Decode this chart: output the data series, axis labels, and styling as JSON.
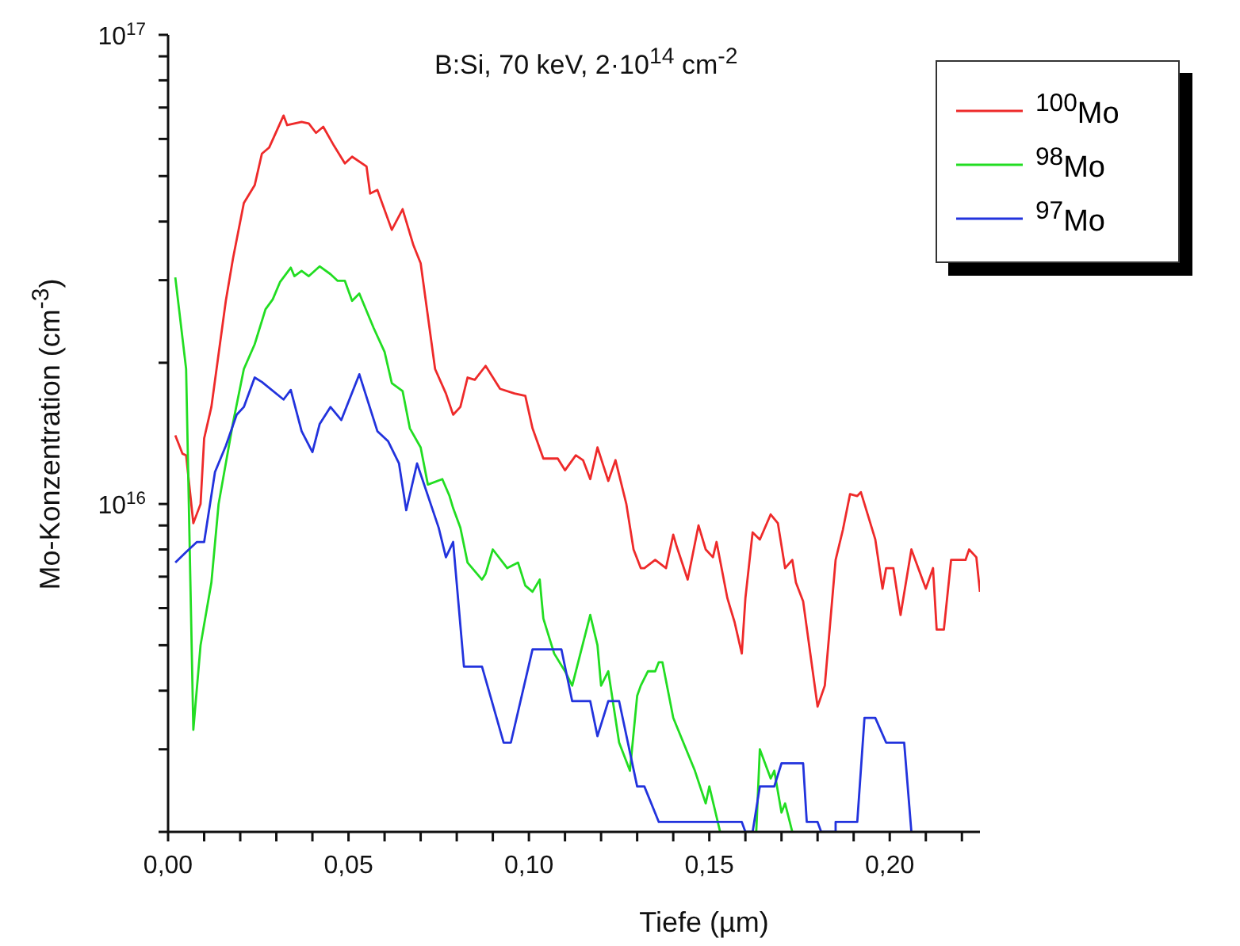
{
  "chart_data": {
    "type": "line",
    "xlabel": "Tiefe (µm)",
    "ylabel": "Mo-Konzentration  (cm$^{-3}$)",
    "annotations": [
      "B:Si, 70 keV, 2·10$^{14}$ cm$^{-2}$"
    ],
    "log": "y",
    "legend": "top right",
    "xlim": [
      0,
      0.225
    ],
    "xticks": [
      {
        "value": 0,
        "label": "0,00"
      },
      {
        "value": 0.01,
        "label": null
      },
      {
        "value": 0.02,
        "label": null
      },
      {
        "value": 0.03,
        "label": null
      },
      {
        "value": 0.04,
        "label": null
      },
      {
        "value": 0.05,
        "label": "0,05"
      },
      {
        "value": 0.06,
        "label": null
      },
      {
        "value": 0.07,
        "label": null
      },
      {
        "value": 0.08,
        "label": null
      },
      {
        "value": 0.09,
        "label": null
      },
      {
        "value": 0.1,
        "label": "0,10"
      },
      {
        "value": 0.11,
        "label": null
      },
      {
        "value": 0.12,
        "label": null
      },
      {
        "value": 0.13,
        "label": null
      },
      {
        "value": 0.14,
        "label": null
      },
      {
        "value": 0.15,
        "label": "0,15"
      },
      {
        "value": 0.16,
        "label": null
      },
      {
        "value": 0.17,
        "label": null
      },
      {
        "value": 0.18,
        "label": null
      },
      {
        "value": 0.19,
        "label": null
      },
      {
        "value": 0.2,
        "label": "0,20"
      },
      {
        "value": 0.21,
        "label": null
      },
      {
        "value": 0.22,
        "label": null
      }
    ],
    "ylim": [
      2000000000000000.0,
      1e+17
    ],
    "yticks": [
      {
        "value": 2000000000000000.0,
        "label": null
      },
      {
        "value": 3000000000000000.0,
        "label": null
      },
      {
        "value": 4000000000000000.0,
        "label": null
      },
      {
        "value": 5000000000000000.0,
        "label": null
      },
      {
        "value": 6000000000000000.0,
        "label": null
      },
      {
        "value": 7000000000000000.0,
        "label": null
      },
      {
        "value": 8000000000000000.0,
        "label": null
      },
      {
        "value": 9000000000000000.0,
        "label": null
      },
      {
        "value": 1e+16,
        "label": "10$^{16}$"
      },
      {
        "value": 2e+16,
        "label": null
      },
      {
        "value": 3e+16,
        "label": null
      },
      {
        "value": 4e+16,
        "label": null
      },
      {
        "value": 5e+16,
        "label": null
      },
      {
        "value": 6e+16,
        "label": null
      },
      {
        "value": 7e+16,
        "label": null
      },
      {
        "value": 8e+16,
        "label": null
      },
      {
        "value": 9e+16,
        "label": null
      },
      {
        "value": 1e+17,
        "label": "10$^{17}$"
      }
    ],
    "series": [
      {
        "name": "$^{100}$Mo",
        "color": "#ee2a2a",
        "x": [
          0.002,
          0.004,
          0.005,
          0.007,
          0.009,
          0.01,
          0.012,
          0.016,
          0.018,
          0.021,
          0.024,
          0.026,
          0.028,
          0.032,
          0.033,
          0.037,
          0.039,
          0.041,
          0.043,
          0.046,
          0.049,
          0.051,
          0.055,
          0.056,
          0.058,
          0.062,
          0.065,
          0.068,
          0.07,
          0.074,
          0.077,
          0.079,
          0.081,
          0.083,
          0.085,
          0.088,
          0.092,
          0.096,
          0.099,
          0.101,
          0.104,
          0.108,
          0.11,
          0.113,
          0.115,
          0.117,
          0.119,
          0.122,
          0.124,
          0.127,
          0.129,
          0.131,
          0.132,
          0.135,
          0.138,
          0.14,
          0.141,
          0.144,
          0.147,
          0.149,
          0.151,
          0.152,
          0.155,
          0.157,
          0.159,
          0.16,
          0.162,
          0.164,
          0.167,
          0.169,
          0.171,
          0.173,
          0.174,
          0.176,
          0.18,
          0.182,
          0.185,
          0.187,
          0.189,
          0.191,
          0.192,
          0.196,
          0.198,
          0.199,
          0.201,
          0.203,
          0.206,
          0.21,
          0.212,
          0.213,
          0.215,
          0.217,
          0.221,
          0.222,
          0.224,
          0.225
        ],
        "values": [
          1.4e+16,
          1.28e+16,
          1.27e+16,
          9100000000000000.0,
          1e+16,
          1.38e+16,
          1.61e+16,
          2.71e+16,
          3.34e+16,
          4.38e+16,
          4.78e+16,
          5.58e+16,
          5.75e+16,
          6.73e+16,
          6.42e+16,
          6.52e+16,
          6.47e+16,
          6.18e+16,
          6.37e+16,
          5.8e+16,
          5.32e+16,
          5.5e+16,
          5.24e+16,
          4.59e+16,
          4.67e+16,
          3.84e+16,
          4.25e+16,
          3.56e+16,
          3.26e+16,
          1.94e+16,
          1.72e+16,
          1.55e+16,
          1.61e+16,
          1.86e+16,
          1.84e+16,
          1.97e+16,
          1.76e+16,
          1.72e+16,
          1.7e+16,
          1.45e+16,
          1.25e+16,
          1.25e+16,
          1.18e+16,
          1.27e+16,
          1.24e+16,
          1.13e+16,
          1.32e+16,
          1.12e+16,
          1.24e+16,
          1e+16,
          8000000000000000.0,
          7300000000000000.0,
          7300000000000000.0,
          7600000000000000.0,
          7300000000000000.0,
          8600000000000000.0,
          8100000000000000.0,
          6900000000000000.0,
          9000000000000000.0,
          8000000000000000.0,
          7700000000000000.0,
          8300000000000000.0,
          6300000000000000.0,
          5600000000000000.0,
          4800000000000000.0,
          6300000000000000.0,
          8700000000000000.0,
          8400000000000000.0,
          9500000000000000.0,
          9100000000000000.0,
          7300000000000000.0,
          7600000000000000.0,
          6800000000000000.0,
          6200000000000000.0,
          3700000000000000.0,
          4100000000000000.0,
          7600000000000000.0,
          8800000000000000.0,
          1.05e+16,
          1.04e+16,
          1.06e+16,
          8400000000000000.0,
          6600000000000000.0,
          7300000000000000.0,
          7300000000000000.0,
          5800000000000000.0,
          8000000000000000.0,
          6600000000000000.0,
          7300000000000000.0,
          5400000000000000.0,
          5400000000000000.0,
          7600000000000000.0,
          7600000000000000.0,
          8000000000000000.0,
          7700000000000000.0,
          6500000000000000.0
        ]
      },
      {
        "name": "$^{98}$Mo",
        "color": "#22dd22",
        "x": [
          0.002,
          0.005,
          0.007,
          0.009,
          0.012,
          0.014,
          0.018,
          0.021,
          0.024,
          0.027,
          0.029,
          0.031,
          0.034,
          0.035,
          0.037,
          0.039,
          0.042,
          0.045,
          0.047,
          0.049,
          0.051,
          0.053,
          0.057,
          0.06,
          0.062,
          0.065,
          0.067,
          0.07,
          0.072,
          0.076,
          0.078,
          0.079,
          0.081,
          0.083,
          0.087,
          0.088,
          0.09,
          0.094,
          0.097,
          0.099,
          0.101,
          0.103,
          0.104,
          0.107,
          0.11,
          0.112,
          0.117,
          0.119,
          0.12,
          0.122,
          0.125,
          0.128,
          0.13,
          0.131,
          0.133,
          0.135,
          0.136,
          0.137,
          0.14,
          0.146,
          0.149,
          0.15,
          0.153,
          0.158,
          0.163,
          0.164,
          0.167,
          0.168,
          0.17,
          0.171,
          0.173
        ],
        "values": [
          3.04e+16,
          1.94e+16,
          3300000000000000.0,
          5000000000000000.0,
          6800000000000000.0,
          1e+16,
          1.49e+16,
          1.94e+16,
          2.19e+16,
          2.6e+16,
          2.73e+16,
          2.97e+16,
          3.19e+16,
          3.06e+16,
          3.14e+16,
          3.06e+16,
          3.21e+16,
          3.09e+16,
          2.99e+16,
          2.99e+16,
          2.71e+16,
          2.81e+16,
          2.37e+16,
          2.11e+16,
          1.81e+16,
          1.74e+16,
          1.45e+16,
          1.32e+16,
          1.1e+16,
          1.13e+16,
          1.04e+16,
          9800000000000000.0,
          8900000000000000.0,
          7500000000000000.0,
          6900000000000000.0,
          7100000000000000.0,
          8000000000000000.0,
          7300000000000000.0,
          7500000000000000.0,
          6700000000000000.0,
          6500000000000000.0,
          6900000000000000.0,
          5700000000000000.0,
          4800000000000000.0,
          4400000000000000.0,
          4100000000000000.0,
          5800000000000000.0,
          5000000000000000.0,
          4100000000000000.0,
          4400000000000000.0,
          3100000000000000.0,
          2700000000000000.0,
          3900000000000000.0,
          4100000000000000.0,
          4400000000000000.0,
          4400000000000000.0,
          4600000000000000.0,
          4600000000000000.0,
          3500000000000000.0,
          2700000000000000.0,
          2300000000000000.0,
          2500000000000000.0,
          2000000000000000.0,
          null,
          2000000000000000.0,
          3000000000000000.0,
          2600000000000000.0,
          2700000000000000.0,
          2200000000000000.0,
          2300000000000000.0,
          2000000000000000.0
        ]
      },
      {
        "name": "$^{97}$Mo",
        "color": "#2233dd",
        "x": [
          0.002,
          0.005,
          0.008,
          0.01,
          0.013,
          0.016,
          0.019,
          0.021,
          0.024,
          0.026,
          0.032,
          0.034,
          0.037,
          0.04,
          0.042,
          0.045,
          0.048,
          0.053,
          0.058,
          0.061,
          0.064,
          0.066,
          0.069,
          0.075,
          0.077,
          0.079,
          0.082,
          0.087,
          0.093,
          0.095,
          0.101,
          0.109,
          0.112,
          0.117,
          0.119,
          0.122,
          0.125,
          0.13,
          0.132,
          0.136,
          0.159,
          0.16,
          0.162,
          0.164,
          0.168,
          0.17,
          0.176,
          0.177,
          0.18,
          0.181,
          0.185,
          0.185,
          0.191,
          0.193,
          0.196,
          0.199,
          0.204,
          0.206
        ],
        "values": [
          7500000000000000.0,
          7900000000000000.0,
          8300000000000000.0,
          8300000000000000.0,
          1.17e+16,
          1.33e+16,
          1.55e+16,
          1.61e+16,
          1.86e+16,
          1.82e+16,
          1.67e+16,
          1.75e+16,
          1.43e+16,
          1.29e+16,
          1.48e+16,
          1.61e+16,
          1.51e+16,
          1.89e+16,
          1.43e+16,
          1.36e+16,
          1.22e+16,
          9700000000000000.0,
          1.22e+16,
          8900000000000000.0,
          7700000000000000.0,
          8300000000000000.0,
          4500000000000000.0,
          4500000000000000.0,
          3100000000000000.0,
          3100000000000000.0,
          4900000000000000.0,
          4900000000000000.0,
          3800000000000000.0,
          3800000000000000.0,
          3200000000000000.0,
          3800000000000000.0,
          3800000000000000.0,
          2500000000000000.0,
          2500000000000000.0,
          2100000000000000.0,
          2100000000000000.0,
          2000000000000000.0,
          2000000000000000.0,
          2500000000000000.0,
          2500000000000000.0,
          2800000000000000.0,
          2800000000000000.0,
          2100000000000000.0,
          2100000000000000.0,
          2000000000000000.0,
          2000000000000000.0,
          2100000000000000.0,
          2100000000000000.0,
          3500000000000000.0,
          3500000000000000.0,
          3100000000000000.0,
          3100000000000000.0,
          2000000000000000.0
        ]
      }
    ]
  }
}
